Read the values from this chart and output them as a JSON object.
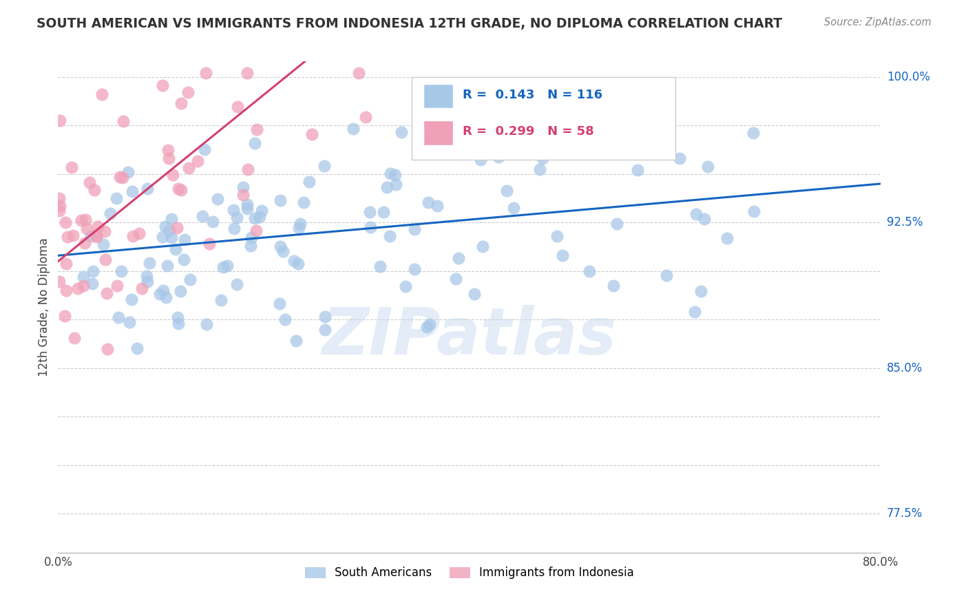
{
  "title": "SOUTH AMERICAN VS IMMIGRANTS FROM INDONESIA 12TH GRADE, NO DIPLOMA CORRELATION CHART",
  "source": "Source: ZipAtlas.com",
  "ylabel_label": "12th Grade, No Diploma",
  "x_min": 0.0,
  "x_max": 0.8,
  "y_min": 0.755,
  "y_max": 1.008,
  "r_blue": 0.143,
  "n_blue": 116,
  "r_pink": 0.299,
  "n_pink": 58,
  "blue_color": "#a8c8e8",
  "pink_color": "#f0a0b8",
  "trend_blue": "#1565c0",
  "trend_pink": "#d44070",
  "legend_label_blue": "South Americans",
  "legend_label_pink": "Immigrants from Indonesia",
  "watermark": "ZIPatlas",
  "grid_color": "#cccccc",
  "y_grid_lines": [
    0.775,
    0.8,
    0.825,
    0.85,
    0.875,
    0.9,
    0.925,
    0.95,
    0.975,
    1.0
  ],
  "y_right_labels": {
    "1.0": "100.0%",
    "0.925": "92.5%",
    "0.85": "85.0%",
    "0.775": "77.5%"
  },
  "blue_trend_x0": 0.0,
  "blue_trend_y0": 0.908,
  "blue_trend_x1": 0.8,
  "blue_trend_y1": 0.945,
  "pink_trend_x0": 0.0,
  "pink_trend_y0": 0.905,
  "pink_trend_x1": 0.24,
  "pink_trend_y1": 1.008
}
